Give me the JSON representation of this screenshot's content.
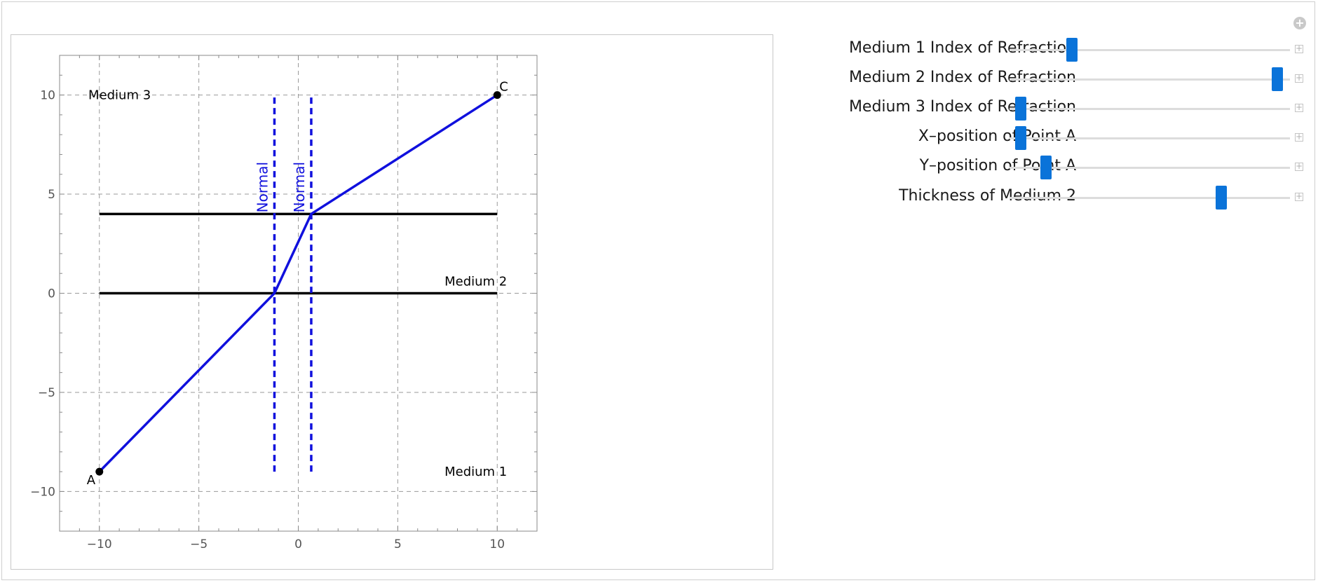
{
  "plot": {
    "medium_labels": [
      "Medium 3",
      "Medium 2",
      "Medium 1"
    ],
    "normal_label": "Normal",
    "point_labels": [
      "A",
      "C"
    ],
    "x_ticks": [
      "−10",
      "−5",
      "0",
      "5",
      "10"
    ],
    "y_ticks": [
      "10",
      "5",
      "0",
      "−5",
      "−10"
    ]
  },
  "chart_data": {
    "type": "line",
    "xlim": [
      -12,
      12
    ],
    "ylim": [
      -12,
      12
    ],
    "grid": true,
    "boundaries_y": [
      0,
      4
    ],
    "boundary_x_range": [
      -10,
      10
    ],
    "ray": {
      "x": [
        -10,
        -1.2,
        0.65,
        10
      ],
      "y": [
        -9,
        0,
        4,
        10
      ]
    },
    "normals": [
      {
        "x": -1.2,
        "y_range": [
          -9,
          10
        ]
      },
      {
        "x": 0.65,
        "y_range": [
          -9,
          10
        ]
      }
    ],
    "points": [
      {
        "label": "A",
        "x": -10,
        "y": -9
      },
      {
        "label": "C",
        "x": 10,
        "y": 10
      }
    ],
    "colors": {
      "ray": "#1010dd",
      "normal": "#1010dd",
      "boundary": "#000000",
      "point": "#000000"
    }
  },
  "controls": [
    {
      "label": "Medium 1 Index of Refraction",
      "value": 0.21
    },
    {
      "label": "Medium 2 Index of Refraction",
      "value": 0.975
    },
    {
      "label": "Medium 3 Index of Refraction",
      "value": 0.02
    },
    {
      "label": "X–position of Point A",
      "value": 0.02
    },
    {
      "label": "Y–position of Point A",
      "value": 0.115
    },
    {
      "label": "Thickness of Medium 2",
      "value": 0.765
    }
  ],
  "icons": {
    "options": "plus-circle-icon",
    "expand": "plus-square-icon"
  },
  "accent_color": "#0a73d9"
}
